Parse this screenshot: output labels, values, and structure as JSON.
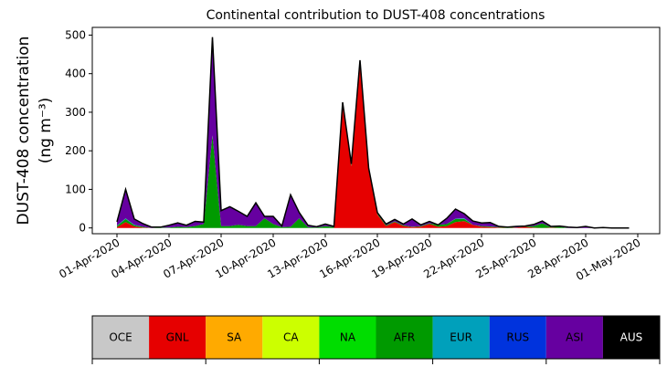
{
  "chart_data": {
    "type": "area",
    "title": "Continental contribution to DUST-408 concentrations",
    "ylabel_line1": "DUST-408 concentration",
    "ylabel_line2": "(ng m⁻³)",
    "xlabel": "",
    "ylim": [
      -15,
      520
    ],
    "yticks": [
      0,
      100,
      200,
      300,
      400,
      500
    ],
    "x_dates": [
      "2020-04-01",
      "2020-04-01T12",
      "2020-04-02",
      "2020-04-02T12",
      "2020-04-03",
      "2020-04-03T12",
      "2020-04-04",
      "2020-04-04T12",
      "2020-04-05",
      "2020-04-05T12",
      "2020-04-06",
      "2020-04-06T12",
      "2020-04-07",
      "2020-04-07T12",
      "2020-04-08",
      "2020-04-08T12",
      "2020-04-09",
      "2020-04-09T12",
      "2020-04-10",
      "2020-04-10T12",
      "2020-04-11",
      "2020-04-11T12",
      "2020-04-12",
      "2020-04-12T12",
      "2020-04-13",
      "2020-04-13T12",
      "2020-04-14",
      "2020-04-14T12",
      "2020-04-15",
      "2020-04-15T12",
      "2020-04-16",
      "2020-04-16T12",
      "2020-04-17",
      "2020-04-17T12",
      "2020-04-18",
      "2020-04-18T12",
      "2020-04-19",
      "2020-04-19T12",
      "2020-04-20",
      "2020-04-20T12",
      "2020-04-21",
      "2020-04-21T12",
      "2020-04-22",
      "2020-04-22T12",
      "2020-04-23",
      "2020-04-23T12",
      "2020-04-24",
      "2020-04-24T12",
      "2020-04-25",
      "2020-04-25T12",
      "2020-04-26",
      "2020-04-26T12",
      "2020-04-27",
      "2020-04-27T12",
      "2020-04-28",
      "2020-04-28T12",
      "2020-04-29",
      "2020-04-29T12",
      "2020-04-30",
      "2020-04-30T12"
    ],
    "xticks": [
      "01-Apr-2020",
      "04-Apr-2020",
      "07-Apr-2020",
      "10-Apr-2020",
      "13-Apr-2020",
      "16-Apr-2020",
      "19-Apr-2020",
      "22-Apr-2020",
      "25-Apr-2020",
      "28-Apr-2020",
      "01-May-2020"
    ],
    "series": [
      {
        "name": "OCE",
        "color": "#c8c8c8",
        "values": [
          0,
          0,
          0,
          0,
          0,
          0,
          0,
          0,
          0,
          0,
          0,
          0,
          0,
          0,
          0,
          0,
          0,
          0,
          0,
          0,
          0,
          0,
          0,
          0,
          0,
          0,
          0,
          0,
          0,
          0,
          0,
          0,
          0,
          0,
          0,
          0,
          0,
          0,
          0,
          0,
          0,
          0,
          0,
          0,
          0,
          0,
          0,
          0,
          0,
          0,
          0,
          0,
          0,
          0,
          0,
          0,
          0,
          0,
          0,
          0
        ]
      },
      {
        "name": "GNL",
        "color": "#e60000",
        "values": [
          2,
          15,
          4,
          1,
          0,
          0,
          0,
          0,
          0,
          0,
          0,
          0,
          0,
          0,
          0,
          0,
          0,
          0,
          0,
          0,
          0,
          0,
          0,
          0,
          0,
          0,
          320,
          160,
          425,
          150,
          35,
          5,
          15,
          5,
          2,
          3,
          10,
          3,
          5,
          15,
          18,
          8,
          3,
          2,
          1,
          0,
          1,
          3,
          1,
          0,
          1,
          0,
          0,
          0,
          0,
          0,
          0,
          0,
          0,
          0
        ]
      },
      {
        "name": "SA",
        "color": "#ffaa00",
        "values": [
          0,
          0,
          0,
          0,
          0,
          0,
          0,
          0,
          0,
          0,
          0,
          0,
          0,
          0,
          0,
          0,
          0,
          0,
          0,
          0,
          0,
          0,
          0,
          0,
          0,
          0,
          0,
          0,
          0,
          0,
          0,
          0,
          0,
          0,
          0,
          0,
          0,
          0,
          0,
          0,
          0,
          0,
          0,
          0,
          0,
          0,
          0,
          0,
          0,
          0,
          0,
          0,
          0,
          0,
          0,
          0,
          0,
          0,
          0,
          0
        ]
      },
      {
        "name": "CA",
        "color": "#ccff00",
        "values": [
          0,
          0,
          0,
          0,
          0,
          0,
          0,
          0,
          0,
          0,
          0,
          0,
          0,
          0,
          0,
          0,
          0,
          0,
          0,
          0,
          0,
          0,
          0,
          0,
          0,
          0,
          0,
          0,
          0,
          0,
          0,
          0,
          0,
          0,
          0,
          0,
          0,
          0,
          0,
          0,
          0,
          0,
          0,
          0,
          0,
          0,
          0,
          0,
          0,
          0,
          0,
          0,
          0,
          0,
          0,
          0,
          0,
          0,
          0,
          0
        ]
      },
      {
        "name": "NA",
        "color": "#00dd00",
        "values": [
          0,
          0,
          0,
          0,
          0,
          0,
          0,
          0,
          0,
          0,
          0,
          0,
          0,
          0,
          0,
          0,
          0,
          0,
          0,
          0,
          0,
          0,
          0,
          0,
          0,
          0,
          0,
          0,
          0,
          0,
          0,
          0,
          0,
          0,
          0,
          0,
          0,
          0,
          0,
          0,
          0,
          0,
          0,
          0,
          0,
          0,
          0,
          0,
          0,
          0,
          0,
          0,
          0,
          0,
          0,
          0,
          0,
          0,
          0,
          0
        ]
      },
      {
        "name": "AFR",
        "color": "#009a00",
        "values": [
          3,
          8,
          3,
          2,
          0,
          1,
          1,
          3,
          2,
          5,
          10,
          240,
          5,
          5,
          8,
          5,
          5,
          25,
          10,
          2,
          3,
          25,
          2,
          1,
          5,
          2,
          1,
          4,
          2,
          2,
          2,
          2,
          2,
          2,
          1,
          2,
          2,
          5,
          5,
          8,
          5,
          0,
          2,
          2,
          1,
          2,
          0,
          1,
          4,
          12,
          1,
          3,
          0,
          0,
          0,
          0,
          1,
          0,
          0,
          0
        ]
      },
      {
        "name": "EUR",
        "color": "#00a0bb",
        "values": [
          1,
          2,
          1,
          0,
          0,
          0,
          0,
          0,
          0,
          0,
          0,
          0,
          0,
          0,
          0,
          0,
          0,
          0,
          0,
          0,
          0,
          0,
          0,
          0,
          0,
          0,
          0,
          0,
          0,
          0,
          0,
          0,
          0,
          0,
          0,
          0,
          0,
          0,
          0,
          1,
          2,
          0,
          0,
          0,
          0,
          0,
          0,
          0,
          0,
          0,
          0,
          0,
          0,
          0,
          0,
          0,
          0,
          0,
          0,
          0
        ]
      },
      {
        "name": "RUS",
        "color": "#0033dd",
        "values": [
          0,
          0,
          0,
          0,
          0,
          0,
          0,
          0,
          0,
          0,
          0,
          0,
          0,
          0,
          0,
          0,
          0,
          0,
          0,
          0,
          0,
          0,
          0,
          0,
          0,
          0,
          0,
          0,
          0,
          0,
          0,
          0,
          0,
          0,
          0,
          0,
          0,
          0,
          0,
          0,
          0,
          0,
          0,
          0,
          0,
          0,
          0,
          0,
          0,
          0,
          0,
          0,
          0,
          0,
          0,
          0,
          0,
          0,
          0,
          0
        ]
      },
      {
        "name": "ASI",
        "color": "#6600a0",
        "values": [
          10,
          75,
          15,
          8,
          2,
          1,
          6,
          10,
          5,
          12,
          5,
          255,
          40,
          50,
          35,
          25,
          60,
          5,
          20,
          3,
          83,
          15,
          5,
          2,
          5,
          2,
          5,
          2,
          8,
          3,
          3,
          3,
          5,
          3,
          20,
          3,
          5,
          0,
          15,
          25,
          12,
          10,
          8,
          10,
          2,
          0,
          3,
          1,
          4,
          6,
          2,
          2,
          2,
          1,
          4,
          0,
          0,
          0,
          0,
          0
        ]
      },
      {
        "name": "AUS",
        "color": "#000000",
        "values": [
          0,
          0,
          0,
          0,
          0,
          0,
          0,
          0,
          0,
          0,
          0,
          0,
          0,
          0,
          0,
          0,
          0,
          0,
          0,
          0,
          0,
          0,
          0,
          0,
          0,
          0,
          0,
          0,
          0,
          0,
          0,
          0,
          0,
          0,
          0,
          0,
          0,
          0,
          0,
          0,
          0,
          0,
          0,
          0,
          0,
          0,
          0,
          0,
          0,
          0,
          0,
          0,
          0,
          0,
          0,
          0,
          0,
          0,
          0,
          0
        ]
      }
    ],
    "legend": [
      "OCE",
      "GNL",
      "SA",
      "CA",
      "NA",
      "AFR",
      "EUR",
      "RUS",
      "ASI",
      "AUS"
    ],
    "legend_text_colors": [
      "#000000",
      "#000000",
      "#000000",
      "#000000",
      "#000000",
      "#000000",
      "#000000",
      "#000000",
      "#000000",
      "#ffffff"
    ],
    "grid": false,
    "legend_placement": "bottom"
  }
}
